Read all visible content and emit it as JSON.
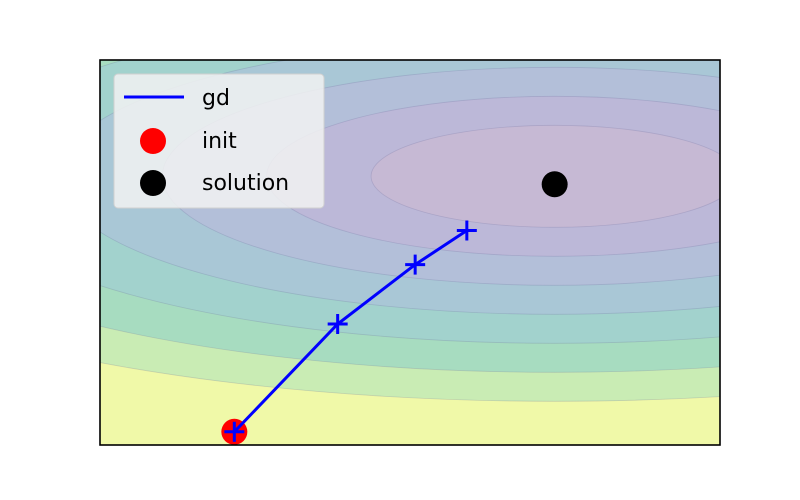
{
  "chart_data": {
    "type": "line",
    "title": "",
    "xlabel": "",
    "ylabel": "",
    "xlim": [
      -2.5,
      3.5
    ],
    "ylim": [
      -1.0,
      2.5
    ],
    "grid": false,
    "legend_placement": "top-left",
    "contour": {
      "description_levels": 8,
      "colors": [
        "#f0f9a8",
        "#c9ecb4",
        "#a7dcc0",
        "#a2d2cd",
        "#a9c7d6",
        "#b3bfd9",
        "#bcb8d8",
        "#c6b9d4"
      ]
    },
    "series": [
      {
        "name": "gd",
        "kind": "line",
        "color": "#0000ff",
        "marker": "+",
        "x": [
          -1.2,
          -0.2,
          0.55,
          1.05
        ],
        "y": [
          -0.88,
          0.1,
          0.64,
          0.95
        ]
      },
      {
        "name": "init",
        "kind": "point",
        "color": "#ff0000",
        "x": [
          -1.2
        ],
        "y": [
          -0.88
        ]
      },
      {
        "name": "solution",
        "kind": "point",
        "color": "#000000",
        "x": [
          1.9
        ],
        "y": [
          1.37
        ]
      }
    ]
  }
}
